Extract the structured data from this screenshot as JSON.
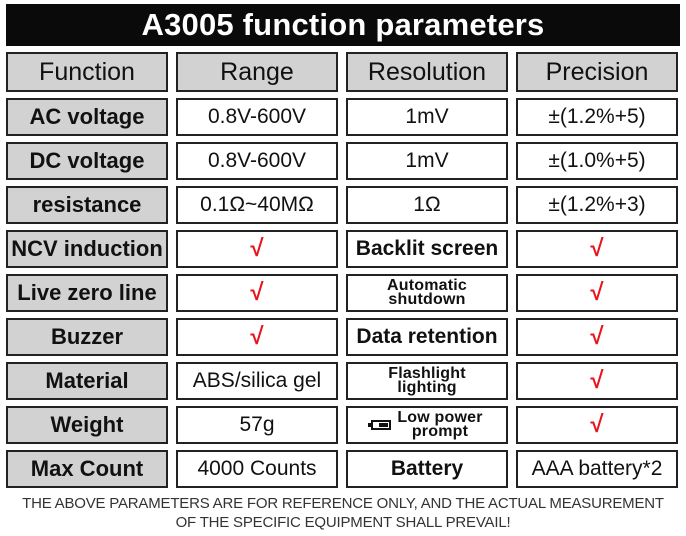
{
  "title": "A3005 function parameters",
  "header": [
    "Function",
    "Range",
    "Resolution",
    "Precision"
  ],
  "rows": [
    {
      "function": "AC voltage",
      "range": "0.8V-600V",
      "resolution": "1mV",
      "precision": "±(1.2%+5)"
    },
    {
      "function": "DC voltage",
      "range": "0.8V-600V",
      "resolution": "1mV",
      "precision": "±(1.0%+5)"
    },
    {
      "function": "resistance",
      "range": "0.1Ω~40MΩ",
      "resolution": "1Ω",
      "precision": "±(1.2%+3)"
    },
    {
      "function": "NCV induction",
      "range": "√",
      "resolution": "Backlit screen",
      "precision": "√"
    },
    {
      "function": "Live zero line",
      "range": "√",
      "resolution_line1": "Automatic",
      "resolution_line2": "shutdown",
      "precision": "√"
    },
    {
      "function": "Buzzer",
      "range": "√",
      "resolution": "Data retention",
      "precision": "√"
    },
    {
      "function": "Material",
      "range": "ABS/silica gel",
      "resolution_line1": "Flashlight",
      "resolution_line2": "lighting",
      "precision": "√"
    },
    {
      "function": "Weight",
      "range": "57g",
      "resolution_line1": "Low power",
      "resolution_line2": "prompt",
      "resolution_icon": "battery-low-icon",
      "precision": "√"
    },
    {
      "function": "Max Count",
      "range": "4000 Counts",
      "resolution": "Battery",
      "precision": "AAA battery*2"
    }
  ],
  "footer": {
    "line1": "THE ABOVE PARAMETERS ARE FOR REFERENCE ONLY, AND THE ACTUAL MEASUREMENT",
    "line2": "OF THE SPECIFIC EQUIPMENT SHALL PREVAIL!"
  },
  "colors": {
    "title_bg": "#0a0a0a",
    "header_bg": "#d2d2d2",
    "check": "#e8141c"
  }
}
